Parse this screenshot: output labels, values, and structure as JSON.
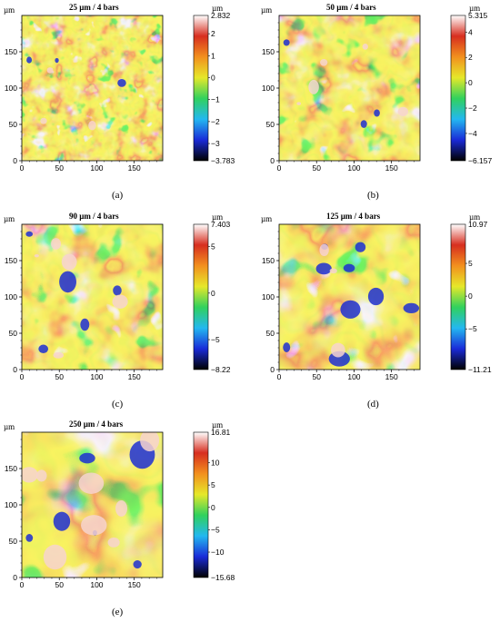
{
  "figure": {
    "panels": [
      {
        "id": "a",
        "title": "25 µm / 4 bars",
        "caption": "(a)",
        "unit": "µm",
        "colorbar": {
          "max": "2.832",
          "min": "−3.783",
          "ticks": [
            "2",
            "1",
            "0",
            "−1",
            "−2",
            "−3"
          ],
          "vmin": -3.783,
          "vmax": 2.832,
          "tickvals": [
            2,
            1,
            0,
            -1,
            -2,
            -3
          ]
        }
      },
      {
        "id": "b",
        "title": "50 µm / 4 bars",
        "caption": "(b)",
        "unit": "µm",
        "colorbar": {
          "max": "5.315",
          "min": "−6.157",
          "ticks": [
            "4",
            "2",
            "0",
            "−2",
            "−4"
          ],
          "vmin": -6.157,
          "vmax": 5.315,
          "tickvals": [
            4,
            2,
            0,
            -2,
            -4
          ]
        }
      },
      {
        "id": "c",
        "title": "90 µm / 4 bars",
        "caption": "(c)",
        "unit": "µm",
        "colorbar": {
          "max": "7.403",
          "min": "−8.22",
          "ticks": [
            "5",
            "0",
            "−5"
          ],
          "vmin": -8.22,
          "vmax": 7.403,
          "tickvals": [
            5,
            0,
            -5
          ]
        }
      },
      {
        "id": "d",
        "title": "125 µm / 4 bars",
        "caption": "(d)",
        "unit": "µm",
        "colorbar": {
          "max": "10.97",
          "min": "−11.21",
          "ticks": [
            "5",
            "0",
            "−5"
          ],
          "vmin": -11.21,
          "vmax": 10.97,
          "tickvals": [
            5,
            0,
            -5
          ]
        }
      },
      {
        "id": "e",
        "title": "250 µm / 4 bars",
        "caption": "(e)",
        "unit": "µm",
        "colorbar": {
          "max": "16.81",
          "min": "−15.68",
          "ticks": [
            "10",
            "5",
            "0",
            "−5",
            "−10"
          ],
          "vmin": -15.68,
          "vmax": 16.81,
          "tickvals": [
            10,
            5,
            0,
            -5,
            -10
          ]
        }
      }
    ],
    "axes": {
      "x_ticks": [
        "0",
        "50",
        "100",
        "150"
      ],
      "x_tickvals": [
        0,
        50,
        100,
        150
      ],
      "x_range": [
        0,
        188
      ],
      "y_ticks": [
        "0",
        "50",
        "100",
        "150"
      ],
      "y_tickvals": [
        0,
        50,
        100,
        150
      ],
      "y_range": [
        0,
        200
      ],
      "unit": "µm"
    },
    "colormap": [
      "#000000",
      "#1a2bd8",
      "#23b8f0",
      "#31d15d",
      "#e6e82a",
      "#f2901e",
      "#d72e1f",
      "#ffffff"
    ]
  }
}
